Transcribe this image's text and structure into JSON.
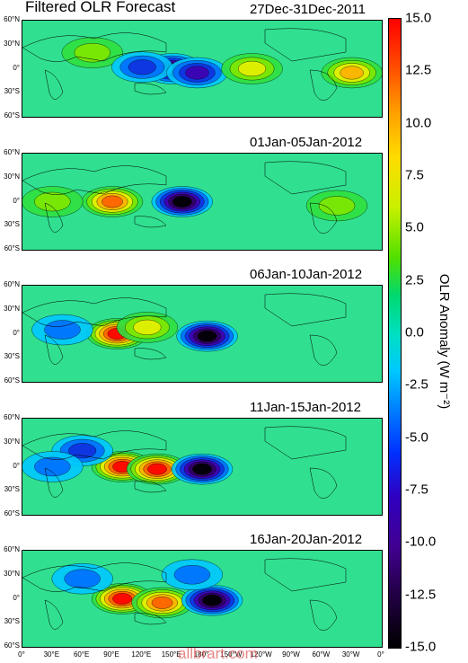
{
  "title": "Filtered OLR  Forecast",
  "panels": [
    {
      "date": "27Dec-31Dec-2011",
      "blobs": [
        {
          "lon": 70,
          "lat": 20,
          "v": 6
        },
        {
          "lon": 150,
          "lat": 0,
          "v": -13
        },
        {
          "lon": 120,
          "lat": 2,
          "v": -8
        },
        {
          "lon": 175,
          "lat": -5,
          "v": -10
        },
        {
          "lon": 230,
          "lat": 0,
          "v": 8
        },
        {
          "lon": 330,
          "lat": -5,
          "v": 9
        }
      ]
    },
    {
      "date": "01Jan-05Jan-2012",
      "blobs": [
        {
          "lon": 90,
          "lat": 0,
          "v": 13
        },
        {
          "lon": 160,
          "lat": 0,
          "v": -14
        },
        {
          "lon": 30,
          "lat": 0,
          "v": 5
        },
        {
          "lon": 315,
          "lat": -5,
          "v": 6
        }
      ]
    },
    {
      "date": "06Jan-10Jan-2012",
      "blobs": [
        {
          "lon": 95,
          "lat": 0,
          "v": 15
        },
        {
          "lon": 125,
          "lat": 8,
          "v": 8
        },
        {
          "lon": 185,
          "lat": -3,
          "v": -14
        },
        {
          "lon": 40,
          "lat": 5,
          "v": -4
        }
      ]
    },
    {
      "date": "11Jan-15Jan-2012",
      "blobs": [
        {
          "lon": 100,
          "lat": 0,
          "v": 15
        },
        {
          "lon": 135,
          "lat": -3,
          "v": 14
        },
        {
          "lon": 180,
          "lat": -3,
          "v": -14
        },
        {
          "lon": 60,
          "lat": 20,
          "v": -7
        },
        {
          "lon": 30,
          "lat": 0,
          "v": -6
        }
      ]
    },
    {
      "date": "16Jan-20Jan-2012",
      "blobs": [
        {
          "lon": 100,
          "lat": 0,
          "v": 15
        },
        {
          "lon": 140,
          "lat": -5,
          "v": 12
        },
        {
          "lon": 190,
          "lat": -2,
          "v": -14
        },
        {
          "lon": 60,
          "lat": 25,
          "v": -6
        },
        {
          "lon": 170,
          "lat": 30,
          "v": -5
        }
      ]
    }
  ],
  "lat_labels": [
    "60°N",
    "30°N",
    "0°",
    "30°S",
    "60°S"
  ],
  "lon_labels": [
    "0°",
    "30°E",
    "60°E",
    "90°E",
    "120°E",
    "150°E",
    "180°",
    "150°W",
    "120°W",
    "90°W",
    "60°W",
    "30°W",
    "0°"
  ],
  "colorbar": {
    "ticks": [
      "15.0",
      "12.5",
      "10.0",
      "7.5",
      "5.0",
      "2.5",
      "0.0",
      "-2.5",
      "-5.0",
      "-7.5",
      "-10.0",
      "-12.5",
      "-15.0"
    ],
    "label": "OLR Anomaly (W m⁻²)"
  },
  "watermark": "allbrart.com"
}
